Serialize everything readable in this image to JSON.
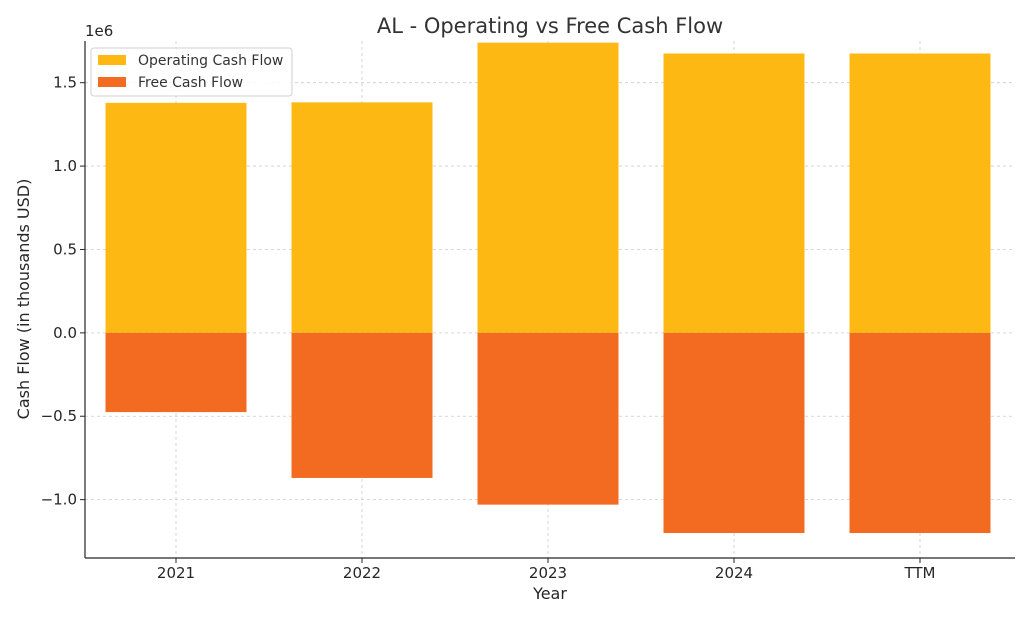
{
  "chart_data": {
    "type": "bar",
    "title": "AL - Operating vs Free Cash Flow",
    "xlabel": "Year",
    "ylabel": "Cash Flow (in thousands USD)",
    "y_offset_label": "1e6",
    "categories": [
      "2021",
      "2022",
      "2023",
      "2024",
      "TTM"
    ],
    "series": [
      {
        "name": "Operating Cash Flow",
        "color": "#FDB813",
        "values": [
          1379000,
          1382000,
          1740000,
          1675000,
          1675000
        ]
      },
      {
        "name": "Free Cash Flow",
        "color": "#F26B21",
        "values": [
          -475000,
          -870000,
          -1030000,
          -1200000,
          -1200000
        ]
      }
    ],
    "ylim": [
      -1.35,
      1.75
    ],
    "yticks": [
      -1.0,
      -0.5,
      0.0,
      0.5,
      1.0,
      1.5
    ],
    "ytick_labels": [
      "−1.0",
      "−0.5",
      "0.0",
      "0.5",
      "1.0",
      "1.5"
    ],
    "grid": true,
    "legend_position": "top-left"
  }
}
